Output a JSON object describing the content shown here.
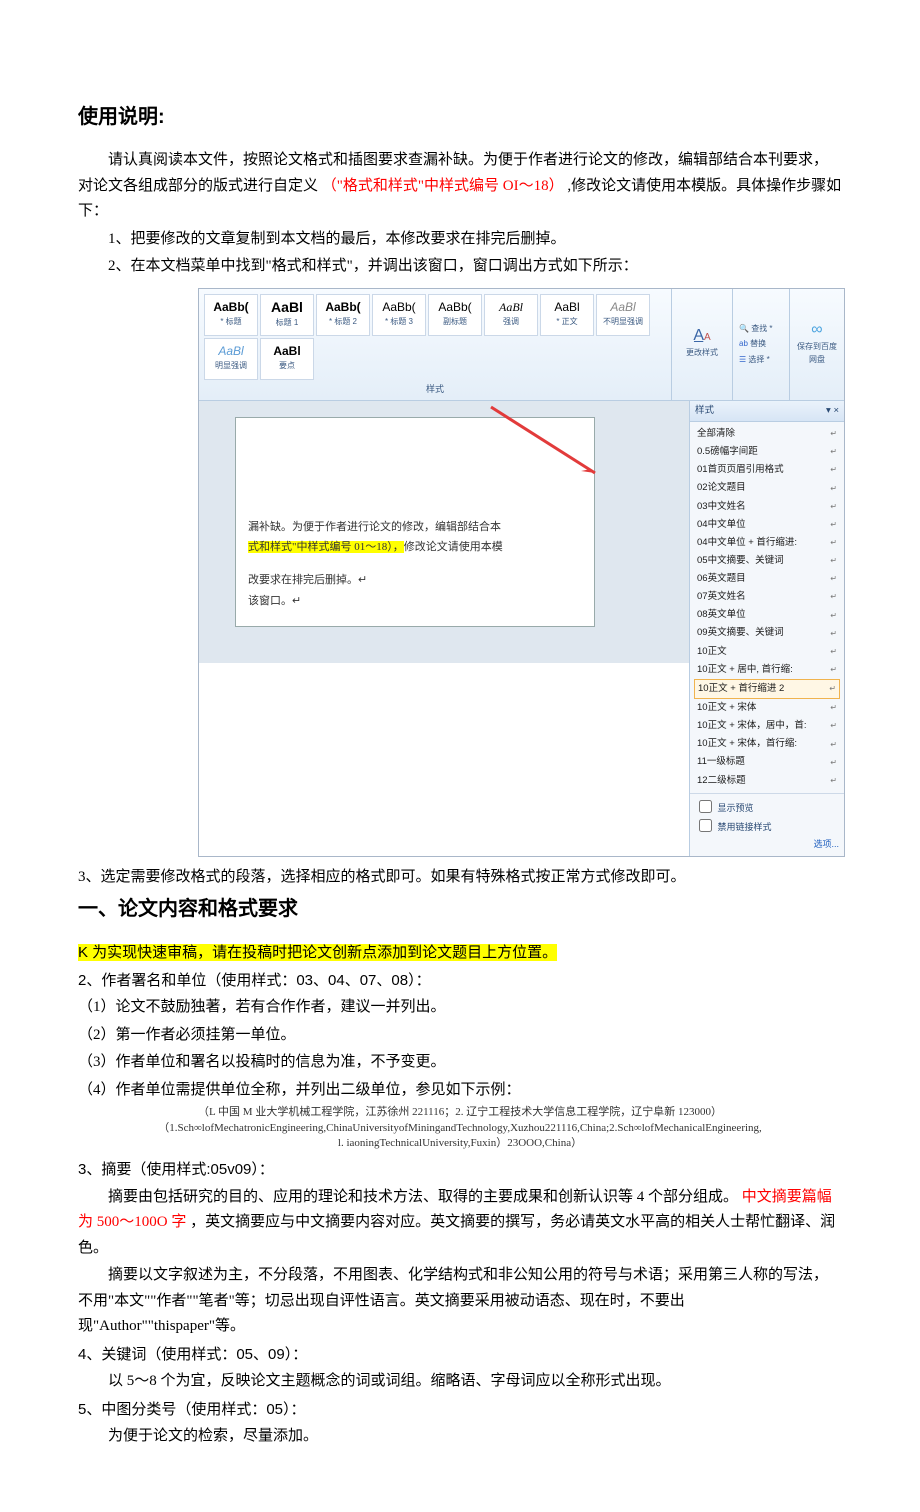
{
  "section1": {
    "title": "使用说明:",
    "intro": "请认真阅读本文件，按照论文格式和插图要求查漏补缺。为便于作者进行论文的修改，编辑部结合本刊要求，对论文各组成部分的版式进行自定义",
    "intro_red": "（\"格式和样式\"中样式编号 OI〜18）",
    "intro2": ",修改论文请使用本模版。具体操作步骤如下：",
    "step1": "1、把要修改的文章复制到本文档的最后，本修改要求在排完后删掉。",
    "step2": "2、在本文档菜单中找到\"格式和样式\"，并调出该窗口，窗口调出方式如下所示：",
    "step3": "3、选定需要修改格式的段落，选择相应的格式即可。如果有特殊格式按正常方式修改即可。"
  },
  "ribbon": {
    "items": [
      {
        "preview": "AaBb(",
        "lbl": "* 标题",
        "style": "font-weight:bold"
      },
      {
        "preview": "AaBl",
        "lbl": "标题 1",
        "style": "font-weight:bold;font-size:14px"
      },
      {
        "preview": "AaBb(",
        "lbl": "* 标题 2",
        "style": "font-weight:bold"
      },
      {
        "preview": "AaBb(",
        "lbl": "* 标题 3",
        "style": ""
      },
      {
        "preview": "AaBb(",
        "lbl": "副标题",
        "style": ""
      },
      {
        "preview": "AaBl",
        "lbl": "强调",
        "style": "font-style:italic;font-family:serif"
      },
      {
        "preview": "AaBl",
        "lbl": "* 正文",
        "style": ""
      },
      {
        "preview": "AaBl",
        "lbl": "不明显强调",
        "style": "font-style:italic;color:#888"
      },
      {
        "preview": "AaBl",
        "lbl": "明显强调",
        "style": "font-style:italic;color:#5b9bd5"
      },
      {
        "preview": "AaBl",
        "lbl": "要点",
        "style": "font-weight:bold"
      }
    ],
    "gallery_label": "样式",
    "change_style_label": "更改样式",
    "find": "查找 *",
    "replace": "替换",
    "select": "选择 *",
    "save_label": "保存到百度网盘"
  },
  "doc_text": {
    "l1a": "漏补缺。为便于作者进行论文的修改，编辑部结合本",
    "l1b_hl": "式和样式\"中样式编号 01～18），",
    "l1b_rest": "修改论文请使用本模",
    "l2": "改要求在排完后删掉。↵",
    "l3": "该窗口。↵"
  },
  "styles_pane": {
    "header": "样式",
    "items": [
      "全部清除",
      "0.5磅幅字间距",
      "01首页页眉引用格式",
      "02论文题目",
      "03中文姓名",
      "04中文单位",
      "04中文单位 + 首行缩进:",
      "05中文摘要、关键词",
      "06英文题目",
      "07英文姓名",
      "08英文单位",
      "09英文摘要、关键词",
      "10正文",
      "10正文 + 居中, 首行缩:",
      "10正文 + 首行缩进    2",
      "10正文 + 宋体",
      "10正文 + 宋体，居中，首:",
      "10正文 + 宋体，首行缩:",
      "11一级标题",
      "12二级标题"
    ],
    "sel_index": 14,
    "chk1": "显示预览",
    "chk2": "禁用链接样式",
    "opt": "选项..."
  },
  "section2": {
    "title": "一、论文内容和格式要求",
    "item1": "K 为实现快速审稿，请在投稿时把论文创新点添加到论文题目上方位置。",
    "item2_head": "2、作者署名和单位（使用样式：03、04、07、08）：",
    "item2_p1": "（1）论文不鼓励独著，若有合作作者，建议一并列出。",
    "item2_p2": "（2）第一作者必须挂第一单位。",
    "item2_p3": "（3）作者单位和署名以投稿时的信息为准，不予变更。",
    "item2_p4": "（4）作者单位需提供单位全称，并列出二级单位，参见如下示例：",
    "example_line1": "（L 中国 M 业大学机械工程学院，江苏徐州 221116；2. 辽宁工程技术大学信息工程学院，辽宁阜新 123000）",
    "example_line2": "（1.Sch∞lofMechatronicEngineering,ChinaUniversityofMiningandTechnology,Xuzhou221116,China;2.Sch∞lofMechanicalEngineering,",
    "example_line3": "l. iaoningTechnicalUniversity,Fuxin）23OOO,China）",
    "item3_head": "3、摘要（使用样式:05v09）：",
    "item3_p1a": "摘要由包括研究的目的、应用的理论和技术方法、取得的主要成果和创新认识等 4 个部分组成。",
    "item3_p1_red": "中文摘要篇幅为 500〜100O 字",
    "item3_p1b": "，英文摘要应与中文摘要内容对应。英文摘要的撰写，务必请英文水平高的相关人士帮忙翻译、润色。",
    "item3_p2": "摘要以文字叙述为主，不分段落，不用图表、化学结构式和非公知公用的符号与术语；采用第三人称的写法，不用\"本文\"\"作者\"\"笔者\"等；切忌出现自评性语言。英文摘要采用被动语态、现在时，不要出现\"Author\"\"thispaper\"等。",
    "item4_head": "4、关键词（使用样式：05、09）：",
    "item4_p1": "以 5〜8 个为宜，反映论文主题概念的词或词组。缩略语、字母词应以全称形式出现。",
    "item5_head": "5、中图分类号（使用样式：05）：",
    "item5_p1": "为便于论文的检索，尽量添加。"
  },
  "colors": {
    "red": "#ff0000",
    "yellow_hl": "#ffff00",
    "ribbon_top": "#f7fbff",
    "ribbon_bottom": "#e4eef8",
    "border_blue": "#b9cde2",
    "arrow": "#e23b3b"
  }
}
